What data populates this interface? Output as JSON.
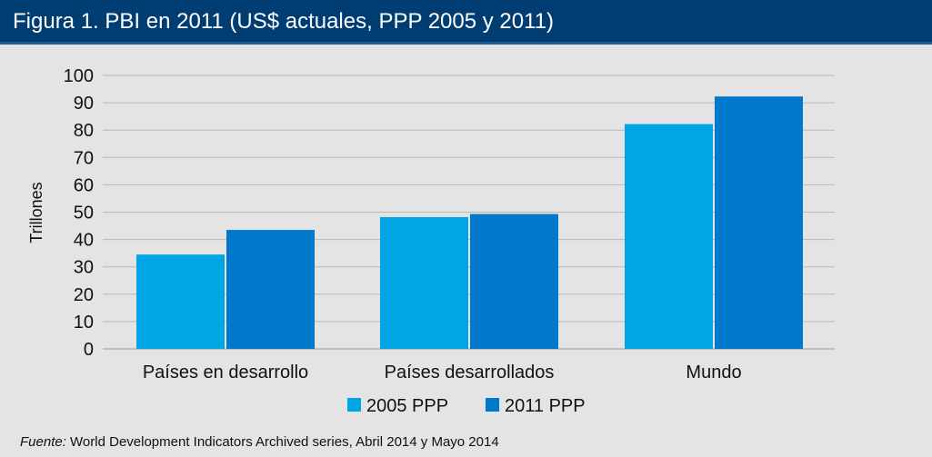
{
  "header": {
    "title": "Figura 1. PBI en 2011 (US$ actuales, PPP 2005 y 2011)"
  },
  "colors": {
    "header_bg": "#003d73",
    "plot_bg": "#e4e4e4",
    "series_2005": "#00a6e3",
    "series_2011": "#0079cc",
    "gridline": "#b9b9b9"
  },
  "chart_data": {
    "type": "bar",
    "title": "",
    "xlabel": "",
    "ylabel": "Trillones",
    "ylim": [
      0,
      100
    ],
    "yticks": [
      0,
      10,
      20,
      30,
      40,
      50,
      60,
      70,
      80,
      90,
      100
    ],
    "grid": true,
    "legend_position": "bottom",
    "categories": [
      "Países en desarrollo",
      "Países desarrollados",
      "Mundo"
    ],
    "series": [
      {
        "name": "2005 PPP",
        "values": [
          34.5,
          48.2,
          82.2
        ],
        "color": "#00a6e3"
      },
      {
        "name": "2011 PPP",
        "values": [
          43.5,
          49.3,
          92.3
        ],
        "color": "#0079cc"
      }
    ]
  },
  "source": {
    "label": "Fuente:",
    "text": " World Development Indicators Archived series, Abril 2014 y Mayo 2014"
  }
}
